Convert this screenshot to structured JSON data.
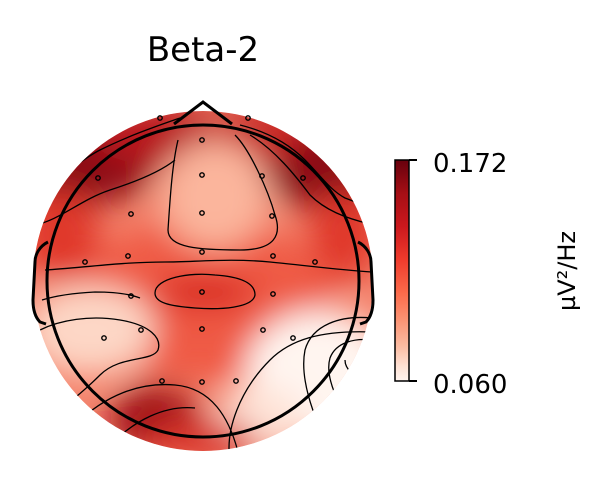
{
  "chart_data": {
    "type": "heatmap",
    "subtype": "eeg-topomap",
    "title": "Beta-2",
    "colormap": "Reds",
    "colorbar": {
      "label": "µV²/Hz",
      "min": 0.06,
      "max": 0.172,
      "tick_labels": [
        "0.172",
        "0.060"
      ]
    },
    "colors": {
      "low": "#fff5f0",
      "mid": "#fb6a4a",
      "high": "#67000d",
      "outline": "#000000"
    }
  }
}
